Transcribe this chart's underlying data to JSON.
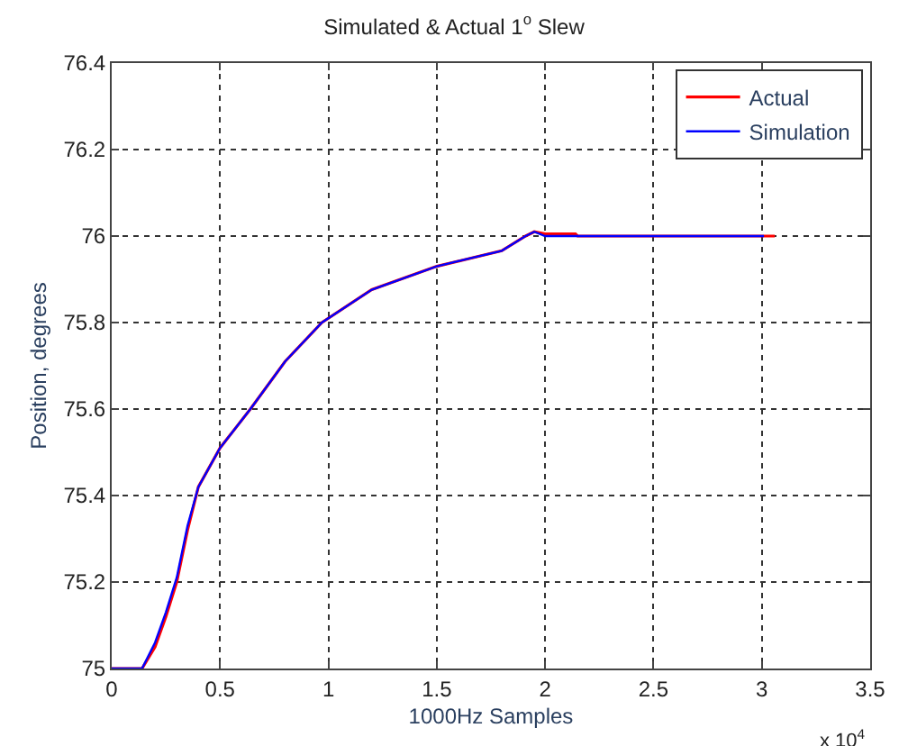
{
  "chart_data": {
    "type": "line",
    "title": "Simulated & Actual 1$^{o}$ Slew",
    "xlabel": "1000Hz Samples",
    "ylabel": "Position, degrees",
    "annotations": [
      "x 10$^{4}$"
    ],
    "xlim": [
      0,
      3.5
    ],
    "xticks": [
      0,
      0.5,
      1,
      1.5,
      2,
      2.5,
      3,
      3.5
    ],
    "ylim": [
      75,
      76.4
    ],
    "yticks": [
      75,
      75.2,
      75.4,
      75.6,
      75.8,
      76,
      76.2,
      76.4
    ],
    "grid": true,
    "legend": "top right",
    "line_style": "solid",
    "marker": "none",
    "series": [
      {
        "name": "Actual",
        "color": "#ff0000",
        "x": [
          0,
          0.14,
          0.2,
          0.25,
          0.3,
          0.35,
          0.4,
          0.5,
          0.64,
          0.8,
          0.97,
          1.2,
          1.5,
          1.8,
          1.91,
          1.95,
          2.0,
          2.14,
          2.15,
          3.06
        ],
        "values": [
          75,
          75,
          75.05,
          75.12,
          75.2,
          75.32,
          75.42,
          75.51,
          75.6,
          75.71,
          75.8,
          75.876,
          75.93,
          75.966,
          76.0,
          76.01,
          76.005,
          76.005,
          76.0,
          76.0
        ]
      },
      {
        "name": "Simulation",
        "color": "#0000ff",
        "x": [
          0,
          0.14,
          0.2,
          0.25,
          0.3,
          0.35,
          0.4,
          0.5,
          0.64,
          0.8,
          0.97,
          1.2,
          1.5,
          1.8,
          1.91,
          1.95,
          2.0,
          3.01
        ],
        "values": [
          75,
          75,
          75.06,
          75.13,
          75.21,
          75.33,
          75.42,
          75.51,
          75.6,
          75.71,
          75.8,
          75.876,
          75.93,
          75.966,
          76.0,
          76.01,
          76.0,
          76.0
        ]
      }
    ]
  }
}
